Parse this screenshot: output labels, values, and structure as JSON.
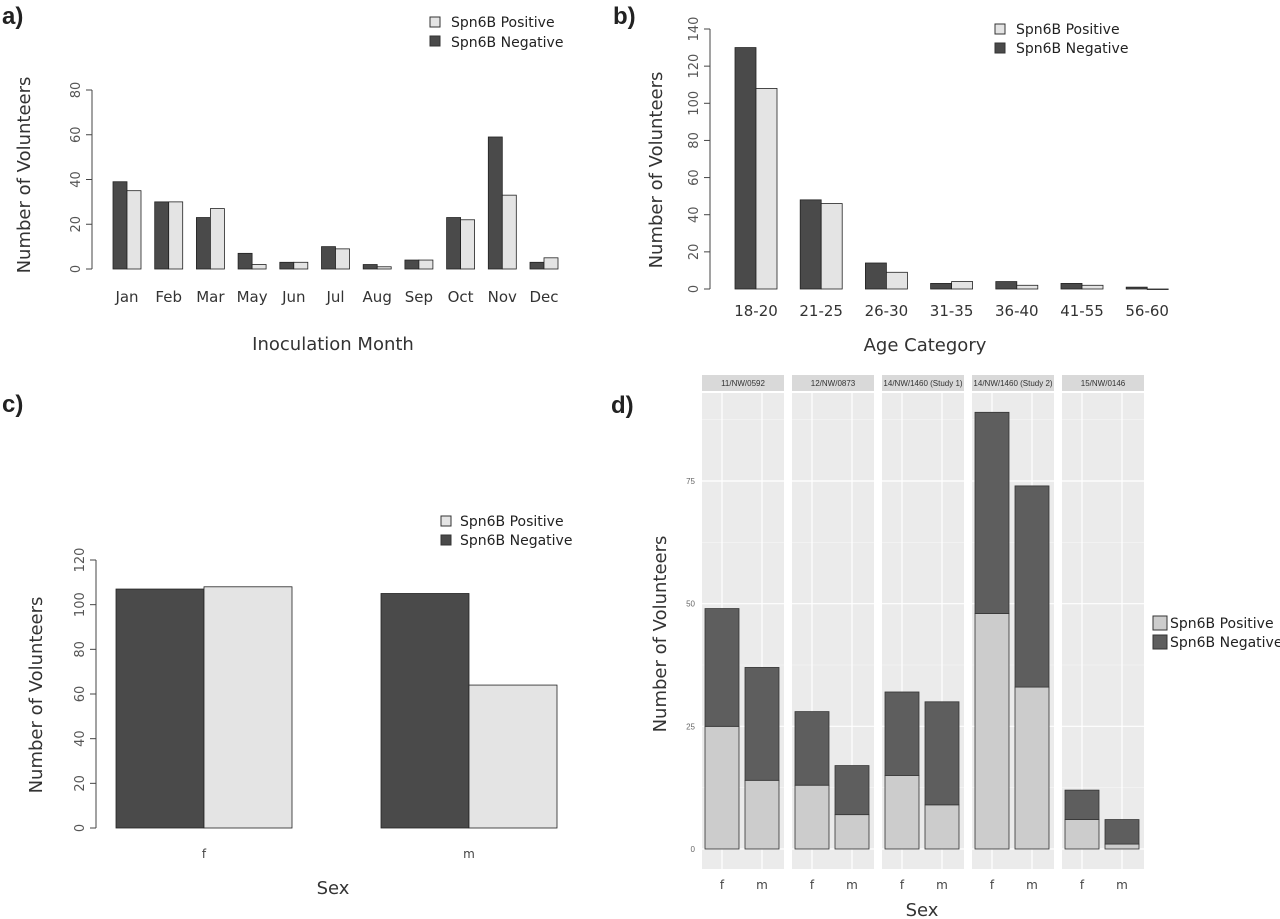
{
  "panels": {
    "a": "a)",
    "b": "b)",
    "c": "c)",
    "d": "d)"
  },
  "legend": {
    "positive": "Spn6B Positive",
    "negative": "Spn6B Negative"
  },
  "colors": {
    "negative": "#4a4a4a",
    "positive": "#e4e4e4",
    "positive_gg": "#cccccc",
    "negative_gg": "#5e5e5e",
    "facet_strip": "#d9d9d9",
    "facet_panel": "#ebebeb"
  },
  "chart_data": [
    {
      "id": "a",
      "type": "bar",
      "categories": [
        "Jan",
        "Feb",
        "Mar",
        "May",
        "Jun",
        "Jul",
        "Aug",
        "Sep",
        "Oct",
        "Nov",
        "Dec"
      ],
      "series": [
        {
          "name": "Spn6B Negative",
          "values": [
            39,
            30,
            23,
            7,
            3,
            10,
            2,
            4,
            23,
            59,
            3
          ]
        },
        {
          "name": "Spn6B Positive",
          "values": [
            35,
            30,
            27,
            2,
            3,
            9,
            1,
            4,
            22,
            33,
            5
          ]
        }
      ],
      "xlabel": "Inoculation Month",
      "ylabel": "Number of Volunteers",
      "ylim": [
        0,
        80
      ],
      "yticks": [
        0,
        20,
        40,
        60,
        80
      ],
      "legend_position": "top-right"
    },
    {
      "id": "b",
      "type": "bar",
      "categories": [
        "18-20",
        "21-25",
        "26-30",
        "31-35",
        "36-40",
        "41-55",
        "56-60"
      ],
      "series": [
        {
          "name": "Spn6B Negative",
          "values": [
            130,
            48,
            14,
            3,
            4,
            3,
            1
          ]
        },
        {
          "name": "Spn6B Positive",
          "values": [
            108,
            46,
            9,
            4,
            2,
            2,
            0
          ]
        }
      ],
      "xlabel": "Age Category",
      "ylabel": "Number of Volunteers",
      "ylim": [
        0,
        140
      ],
      "yticks": [
        0,
        20,
        40,
        60,
        80,
        100,
        120,
        140
      ],
      "legend_position": "top-right"
    },
    {
      "id": "c",
      "type": "bar",
      "categories": [
        "f",
        "m"
      ],
      "series": [
        {
          "name": "Spn6B Negative",
          "values": [
            107,
            105
          ]
        },
        {
          "name": "Spn6B Positive",
          "values": [
            108,
            64
          ]
        }
      ],
      "xlabel": "Sex",
      "ylabel": "Number of Volunteers",
      "ylim": [
        0,
        120
      ],
      "yticks": [
        0,
        20,
        40,
        60,
        80,
        100,
        120
      ],
      "legend_position": "top-right"
    },
    {
      "id": "d",
      "type": "bar",
      "stacked": true,
      "facets": [
        {
          "label": "11/NW/0592",
          "categories": [
            "f",
            "m"
          ],
          "positive": [
            25,
            14
          ],
          "negative": [
            24,
            23
          ]
        },
        {
          "label": "12/NW/0873",
          "categories": [
            "f",
            "m"
          ],
          "positive": [
            13,
            7
          ],
          "negative": [
            15,
            10
          ]
        },
        {
          "label": "14/NW/1460 (Study 1)",
          "categories": [
            "f",
            "m"
          ],
          "positive": [
            15,
            9
          ],
          "negative": [
            17,
            21
          ]
        },
        {
          "label": "14/NW/1460 (Study 2)",
          "categories": [
            "f",
            "m"
          ],
          "positive": [
            48,
            33
          ],
          "negative": [
            41,
            41
          ]
        },
        {
          "label": "15/NW/0146",
          "categories": [
            "f",
            "m"
          ],
          "positive": [
            6,
            1
          ],
          "negative": [
            6,
            5
          ]
        }
      ],
      "series_names": [
        "Spn6B Positive",
        "Spn6B Negative"
      ],
      "xlabel": "Sex",
      "ylabel": "Number of Volunteers",
      "ylim": [
        0,
        94
      ],
      "yticks": [
        0,
        25,
        50,
        75
      ],
      "legend_position": "right"
    }
  ]
}
